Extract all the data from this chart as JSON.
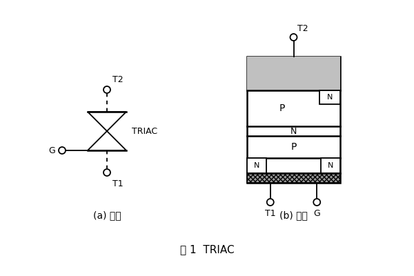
{
  "bg_color": "#ffffff",
  "line_color": "#000000",
  "gray_fill": "#c0c0c0",
  "title": "图 1  TRIAC",
  "label_a": "(a) 符号",
  "label_b": "(b) 构造",
  "triac_label": "TRIAC",
  "font_size": 10,
  "small_font": 9,
  "lw": 1.3
}
